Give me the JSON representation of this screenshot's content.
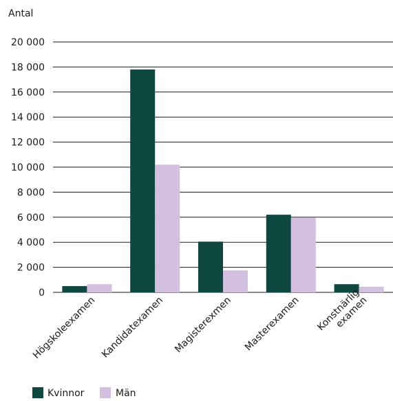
{
  "chart_data": {
    "type": "bar",
    "ylabel": "Antal",
    "categories": [
      "Högskoleexamen",
      "Kandidatexamen",
      "Magisterexmen",
      "Masterexamen",
      "Konstnärlig examen"
    ],
    "category_lines": [
      [
        "Högskoleexamen"
      ],
      [
        "Kandidatexamen"
      ],
      [
        "Magisterexmen"
      ],
      [
        "Masterexamen"
      ],
      [
        "Konstnärlig",
        "examen"
      ]
    ],
    "series": [
      {
        "name": "Kvinnor",
        "color": "#0f4741",
        "values": [
          500,
          17800,
          4050,
          6200,
          650
        ]
      },
      {
        "name": "Män",
        "color": "#d3bfe0",
        "values": [
          650,
          10200,
          1750,
          5950,
          450
        ]
      }
    ],
    "ylim": [
      0,
      20000
    ],
    "yticks": [
      0,
      2000,
      4000,
      6000,
      8000,
      10000,
      12000,
      14000,
      16000,
      18000,
      20000
    ],
    "ytick_labels": [
      "0",
      "2 000",
      "4 000",
      "6 000",
      "8 000",
      "10 000",
      "12 000",
      "14 000",
      "16 000",
      "18 000",
      "20 000"
    ],
    "grid": true,
    "legend_position": "bottom-left"
  }
}
